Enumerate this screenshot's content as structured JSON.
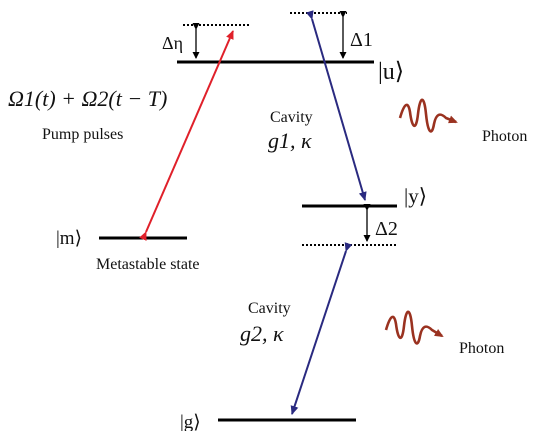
{
  "colors": {
    "level": "#000000",
    "pump_arrow": "#e0202a",
    "cavity_arrow": "#2a2a80",
    "photon": "#9a3220"
  },
  "states": {
    "u": "|u⟩",
    "y": "|y⟩",
    "m": "|m⟩",
    "g": "|g⟩"
  },
  "detunings": {
    "delta_eta": "Δη",
    "delta_1": "Δ1",
    "delta_2": "Δ2"
  },
  "pump": {
    "formula": "Ω1(t) + Ω2(t − T)",
    "label": "Pump pulses"
  },
  "metastable_label": "Metastable state",
  "cavity_1": {
    "label": "Cavity",
    "params": "g1, κ"
  },
  "cavity_2": {
    "label": "Cavity",
    "params": "g2, κ"
  },
  "photon_1": {
    "label": "Photon",
    "icon": "wavy-photon-icon"
  },
  "photon_2": {
    "label": "Photon",
    "icon": "wavy-photon-icon"
  }
}
